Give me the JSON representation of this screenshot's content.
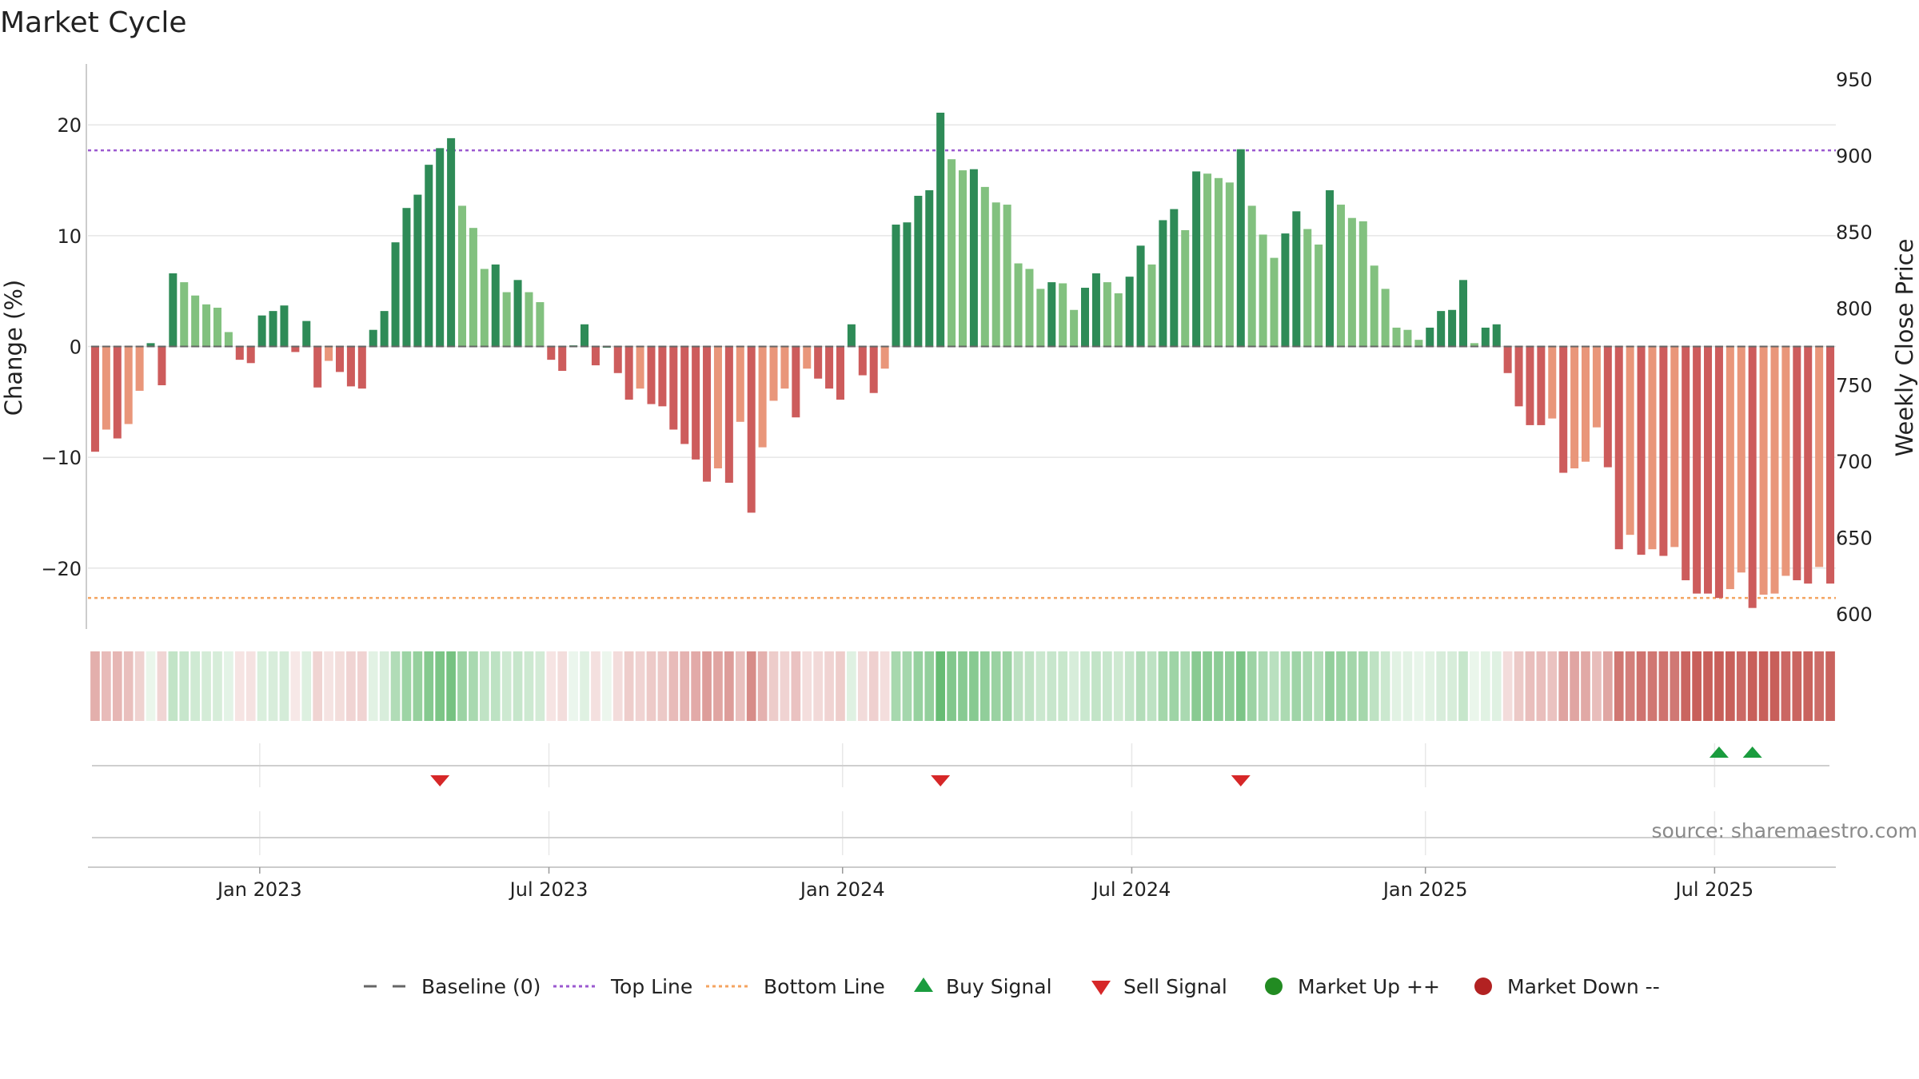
{
  "chart_data": {
    "type": "bar",
    "title": "Market Cycle",
    "ylabel_left": "Change (%)",
    "ylabel_right": "Weekly Close Price",
    "ylim_left": [
      -25.5,
      25.5
    ],
    "ylim_right": [
      590,
      960
    ],
    "left_ticks": [
      20,
      10,
      0,
      -10,
      -20
    ],
    "left_tick_labels": [
      "20",
      "10",
      "0",
      "−10",
      "−20"
    ],
    "right_ticks": [
      950,
      900,
      850,
      800,
      750,
      700,
      650,
      600
    ],
    "right_tick_labels": [
      "950",
      "900",
      "850",
      "800",
      "750",
      "700",
      "650",
      "600"
    ],
    "x_tick_labels": [
      "Jan 2023",
      "Jul 2023",
      "Jan 2024",
      "Jul 2024",
      "Jan 2025",
      "Jul 2025"
    ],
    "x_tick_positions": [
      15.3,
      41.3,
      67.7,
      93.7,
      120.1,
      146.1
    ],
    "top_line": 17.7,
    "bottom_line": -22.7,
    "grid": true,
    "legend_position": "bottom",
    "colors": {
      "up_strong": "#2e8b57",
      "up_weak": "#82c17f",
      "down_strong": "#cd5c5c",
      "down_weak": "#e9967a",
      "top_line": "#9b59d0",
      "bottom_line": "#f4a460",
      "buy": "#1a9c3e",
      "sell": "#d62728",
      "market_up": "#228b22",
      "market_down": "#b22222",
      "baseline": "#666666"
    },
    "values": [
      -9.5,
      -7.5,
      -8.3,
      -7.0,
      -4.0,
      0.3,
      -3.5,
      6.6,
      5.8,
      4.6,
      3.8,
      3.5,
      1.3,
      -1.2,
      -1.5,
      2.8,
      3.2,
      3.7,
      -0.5,
      2.3,
      -3.7,
      -1.3,
      -2.3,
      -3.6,
      -3.8,
      1.5,
      3.2,
      9.4,
      12.5,
      13.7,
      16.4,
      17.9,
      18.8,
      12.7,
      10.7,
      7.0,
      7.4,
      4.9,
      6.0,
      4.9,
      4.0,
      -1.2,
      -2.2,
      0.1,
      2.0,
      -1.7,
      0.0,
      -2.4,
      -4.8,
      -3.8,
      -5.2,
      -5.4,
      -7.5,
      -8.8,
      -10.2,
      -12.2,
      -11.0,
      -12.3,
      -6.8,
      -15.0,
      -9.1,
      -4.9,
      -3.8,
      -6.4,
      -2.0,
      -2.9,
      -3.8,
      -4.8,
      2.0,
      -2.6,
      -4.2,
      -2.0,
      11.0,
      11.2,
      13.6,
      14.1,
      21.1,
      16.9,
      15.9,
      16.0,
      14.4,
      13.0,
      12.8,
      7.5,
      7.0,
      5.2,
      5.8,
      5.7,
      3.3,
      5.3,
      6.6,
      5.8,
      4.8,
      6.3,
      9.1,
      7.4,
      11.4,
      12.4,
      10.5,
      15.8,
      15.6,
      15.2,
      14.8,
      17.8,
      12.7,
      10.1,
      8.0,
      10.2,
      12.2,
      10.6,
      9.2,
      14.1,
      12.8,
      11.6,
      11.3,
      7.3,
      5.2,
      1.7,
      1.5,
      0.6,
      1.7,
      3.2,
      3.3,
      6.0,
      0.3,
      1.7,
      2.0,
      -2.4,
      -5.4,
      -7.1,
      -7.1,
      -6.5,
      -11.4,
      -11.0,
      -10.4,
      -7.3,
      -10.9,
      -18.3,
      -17.0,
      -18.8,
      -18.3,
      -18.9,
      -18.1,
      -21.1,
      -22.3,
      -22.3,
      -22.7,
      -21.9,
      -20.4,
      -23.6,
      -22.4,
      -22.3,
      -20.7,
      -21.1,
      -21.4,
      -19.9,
      -21.4
    ],
    "sell_signals": [
      31,
      76,
      103
    ],
    "buy_signals": [
      146,
      149
    ]
  },
  "legend": {
    "items": [
      {
        "label": "Baseline (0)",
        "type": "dash",
        "color": "#666666"
      },
      {
        "label": "Top Line",
        "type": "dotted",
        "color": "#9b59d0"
      },
      {
        "label": "Bottom Line",
        "type": "dotted",
        "color": "#f4a460"
      },
      {
        "label": "Buy Signal",
        "type": "triangle-up",
        "color": "#1a9c3e"
      },
      {
        "label": "Sell Signal",
        "type": "triangle-down",
        "color": "#d62728"
      },
      {
        "label": "Market Up ++",
        "type": "circle",
        "color": "#228b22"
      },
      {
        "label": "Market Down --",
        "type": "circle",
        "color": "#b22222"
      }
    ]
  },
  "source": "source: sharemaestro.com"
}
